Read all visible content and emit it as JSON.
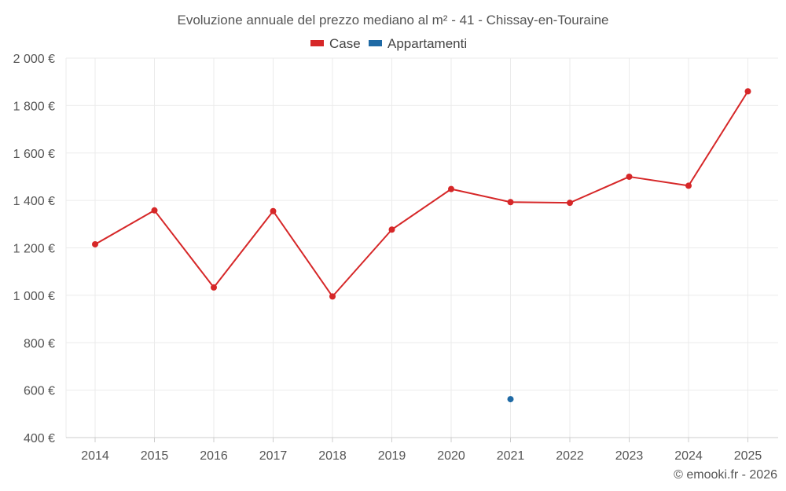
{
  "chart_data": {
    "type": "line",
    "title": "Evoluzione annuale del prezzo mediano al m² - 41 - Chissay-en-Touraine",
    "xlabel": "",
    "ylabel": "",
    "categories": [
      "2014",
      "2015",
      "2016",
      "2017",
      "2018",
      "2019",
      "2020",
      "2021",
      "2022",
      "2023",
      "2024",
      "2025"
    ],
    "ylim": [
      400,
      2000
    ],
    "yticks": [
      400,
      600,
      800,
      1000,
      1200,
      1400,
      1600,
      1800,
      2000
    ],
    "ytick_labels": [
      "400 €",
      "600 €",
      "800 €",
      "1 000 €",
      "1 200 €",
      "1 400 €",
      "1 600 €",
      "1 800 €",
      "2 000 €"
    ],
    "grid": true,
    "legend_position": "top-center",
    "series": [
      {
        "name": "Case",
        "color": "#d62728",
        "values": [
          1215,
          1358,
          1033,
          1355,
          995,
          1277,
          1448,
          1393,
          1390,
          1500,
          1462,
          1860
        ]
      },
      {
        "name": "Appartamenti",
        "color": "#1f6aa5",
        "values": [
          null,
          null,
          null,
          null,
          null,
          null,
          null,
          562,
          null,
          null,
          null,
          null
        ]
      }
    ]
  },
  "credit": "© emooki.fr - 2026"
}
